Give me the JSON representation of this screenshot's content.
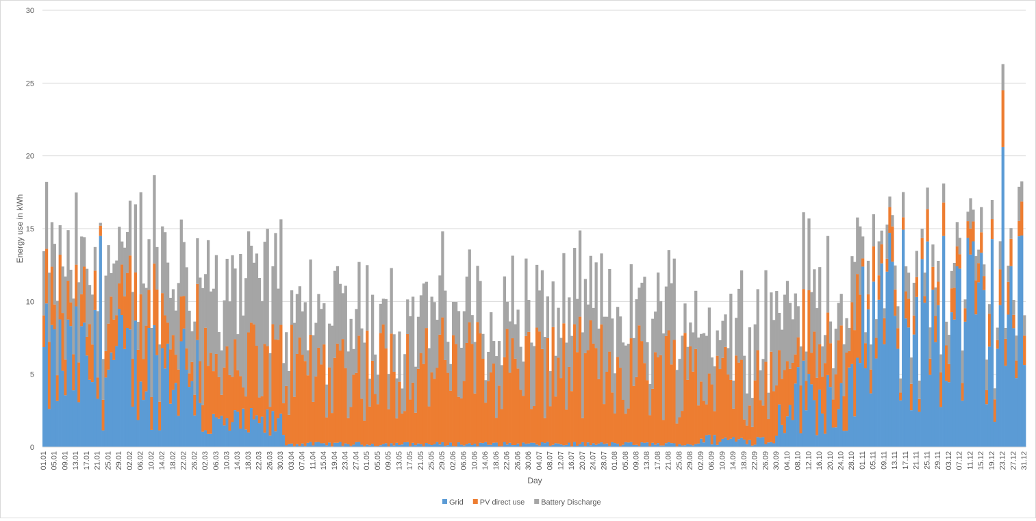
{
  "chart_data": {
    "type": "bar",
    "stacked": true,
    "title": "",
    "xlabel": "Day",
    "ylabel": "Energy use in kWh",
    "ylim": [
      0,
      30
    ],
    "yticks": [
      0,
      5,
      10,
      15,
      20,
      25,
      30
    ],
    "grid": true,
    "legend_position": "bottom",
    "series": [
      {
        "name": "Grid",
        "color": "#5b9bd5"
      },
      {
        "name": "PV direct use",
        "color": "#ed7d31"
      },
      {
        "name": "Battery Discharge",
        "color": "#a5a5a5"
      }
    ],
    "x_tick_labels": [
      "01.01",
      "05.01",
      "09.01",
      "13.01",
      "17.01",
      "21.01",
      "25.01",
      "29.01",
      "02.02",
      "06.02",
      "10.02",
      "14.02",
      "18.02",
      "22.02",
      "26.02",
      "02.03",
      "06.03",
      "10.03",
      "14.03",
      "18.03",
      "22.03",
      "26.03",
      "30.03",
      "03.04",
      "07.04",
      "11.04",
      "15.04",
      "19.04",
      "23.04",
      "27.04",
      "01.05",
      "05.05",
      "09.05",
      "13.05",
      "17.05",
      "21.05",
      "25.05",
      "29.05",
      "02.06",
      "06.06",
      "10.06",
      "14.06",
      "18.06",
      "22.06",
      "26.06",
      "30.06",
      "04.07",
      "08.07",
      "12.07",
      "16.07",
      "20.07",
      "24.07",
      "28.07",
      "01.08",
      "05.08",
      "09.08",
      "13.08",
      "17.08",
      "21.08",
      "25.08",
      "29.08",
      "02.09",
      "06.09",
      "10.09",
      "14.09",
      "18.09",
      "22.09",
      "26.09",
      "30.09",
      "04.10",
      "08.10",
      "12.10",
      "16.10",
      "20.10",
      "24.10",
      "28.10",
      "01.11",
      "05.11",
      "09.11",
      "13.11",
      "17.11",
      "21.11",
      "25.11",
      "29.11",
      "03.12",
      "07.12",
      "11.12",
      "15.12",
      "19.12",
      "23.12",
      "27.12",
      "31.12"
    ],
    "x_tick_every_n_days": 4,
    "days": 365,
    "period_averages": [
      {
        "from": "01.01",
        "to": "28.02",
        "grid": 5.5,
        "pv": 3.0,
        "battery": 3.8
      },
      {
        "from": "01.03",
        "to": "31.03",
        "grid": 1.5,
        "pv": 4.2,
        "battery": 5.5
      },
      {
        "from": "01.04",
        "to": "31.08",
        "grid": 0.2,
        "pv": 5.2,
        "battery": 3.8
      },
      {
        "from": "01.09",
        "to": "30.09",
        "grid": 0.5,
        "pv": 4.0,
        "battery": 4.2
      },
      {
        "from": "01.10",
        "to": "31.10",
        "grid": 3.5,
        "pv": 3.5,
        "battery": 3.5
      },
      {
        "from": "01.11",
        "to": "31.12",
        "grid": 8.5,
        "pv": 1.5,
        "battery": 1.5
      }
    ],
    "notable_days": [
      {
        "day": "22.01",
        "grid": 14.5,
        "pv": 0.7,
        "battery": 0.2
      },
      {
        "day": "06.02",
        "grid": 4.5,
        "pv": 6.0,
        "battery": 7.0
      },
      {
        "day": "01.12",
        "grid": 14.5,
        "pv": 2.3,
        "battery": 1.3
      },
      {
        "day": "23.12",
        "grid": 20.6,
        "pv": 3.9,
        "battery": 1.8
      }
    ]
  }
}
